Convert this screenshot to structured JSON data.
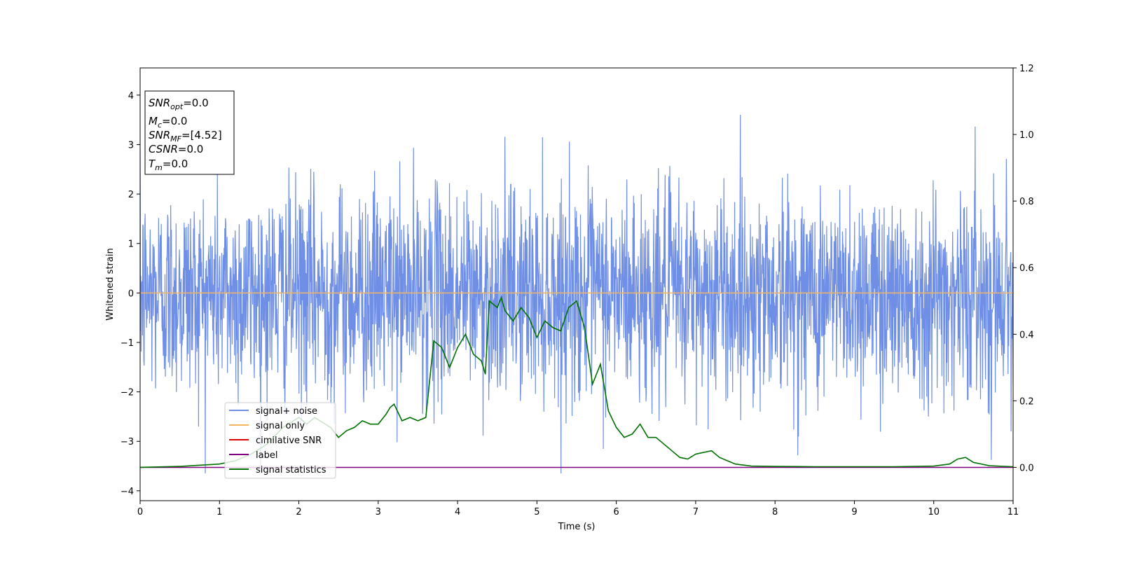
{
  "chart_data": {
    "type": "line",
    "xlabel": "Time (s)",
    "ylabel": "Whitened strain",
    "xlim": [
      0,
      11
    ],
    "ylim_left": [
      -4.2,
      4.55
    ],
    "ylim_right": [
      -0.1,
      1.2
    ],
    "x_ticks": [
      0,
      1,
      2,
      3,
      4,
      5,
      6,
      7,
      8,
      9,
      10,
      11
    ],
    "y_ticks_left": [
      -4,
      -3,
      -2,
      -1,
      0,
      1,
      2,
      3,
      4
    ],
    "y_ticks_right": [
      0.0,
      0.2,
      0.4,
      0.6,
      0.8,
      1.0,
      1.2
    ],
    "grid": false,
    "legend_position": "lower-left",
    "colors": {
      "signal_noise": "#6f8fe6",
      "signal_only": "#f5b461",
      "cumulative_snr": "#e00000",
      "label": "#800080",
      "signal_statistics": "#007000"
    },
    "legend": [
      {
        "key": "signal_noise",
        "label": "signal+ noise"
      },
      {
        "key": "signal_only",
        "label": "signal only"
      },
      {
        "key": "cumulative_snr",
        "label": "cimilative SNR"
      },
      {
        "key": "label",
        "label": "label"
      },
      {
        "key": "signal_statistics",
        "label": "signal statistics"
      }
    ],
    "info_box": [
      {
        "base": "SNR",
        "sub": "opt",
        "value": "=0.0"
      },
      {
        "base": "M",
        "sub": "c",
        "value": "=0.0"
      },
      {
        "base": "SNR",
        "sub": "MF",
        "value": "=[4.52]"
      },
      {
        "base": "CSNR",
        "sub": "",
        "value": "=0.0"
      },
      {
        "base": "T",
        "sub": "m",
        "value": "=0.0"
      }
    ],
    "signal_noise": {
      "description_range": [
        -3.65,
        4.15
      ],
      "typical_upper": 1.5,
      "typical_lower": -1.5
    },
    "signal_only": {
      "x": [
        0,
        11
      ],
      "y": [
        0,
        0
      ]
    },
    "label_series": {
      "x": [
        0,
        11
      ],
      "y": [
        0,
        0
      ]
    },
    "signal_statistics": {
      "x": [
        0.0,
        0.5,
        1.0,
        1.2,
        1.4,
        1.6,
        1.8,
        2.0,
        2.1,
        2.2,
        2.4,
        2.5,
        2.6,
        2.7,
        2.8,
        2.9,
        3.0,
        3.1,
        3.15,
        3.2,
        3.3,
        3.4,
        3.5,
        3.6,
        3.7,
        3.8,
        3.9,
        4.0,
        4.1,
        4.2,
        4.3,
        4.35,
        4.4,
        4.5,
        4.55,
        4.6,
        4.7,
        4.8,
        4.9,
        5.0,
        5.1,
        5.2,
        5.3,
        5.4,
        5.5,
        5.6,
        5.7,
        5.8,
        5.9,
        6.0,
        6.1,
        6.2,
        6.3,
        6.4,
        6.5,
        6.6,
        6.7,
        6.8,
        6.9,
        7.0,
        7.1,
        7.2,
        7.3,
        7.4,
        7.5,
        7.7,
        8.0,
        8.5,
        9.0,
        9.5,
        10.0,
        10.2,
        10.3,
        10.4,
        10.5,
        10.7,
        11.0
      ],
      "y": [
        0.0,
        0.003,
        0.01,
        0.02,
        0.04,
        0.07,
        0.12,
        0.15,
        0.13,
        0.15,
        0.12,
        0.09,
        0.11,
        0.12,
        0.14,
        0.13,
        0.13,
        0.16,
        0.18,
        0.19,
        0.14,
        0.15,
        0.14,
        0.15,
        0.38,
        0.36,
        0.3,
        0.36,
        0.4,
        0.34,
        0.32,
        0.28,
        0.5,
        0.48,
        0.51,
        0.47,
        0.44,
        0.48,
        0.45,
        0.39,
        0.44,
        0.42,
        0.41,
        0.48,
        0.5,
        0.42,
        0.25,
        0.31,
        0.17,
        0.12,
        0.09,
        0.1,
        0.13,
        0.09,
        0.09,
        0.07,
        0.05,
        0.03,
        0.025,
        0.04,
        0.045,
        0.05,
        0.03,
        0.02,
        0.01,
        0.004,
        0.003,
        0.002,
        0.002,
        0.002,
        0.004,
        0.01,
        0.025,
        0.03,
        0.015,
        0.005,
        0.002
      ]
    }
  }
}
